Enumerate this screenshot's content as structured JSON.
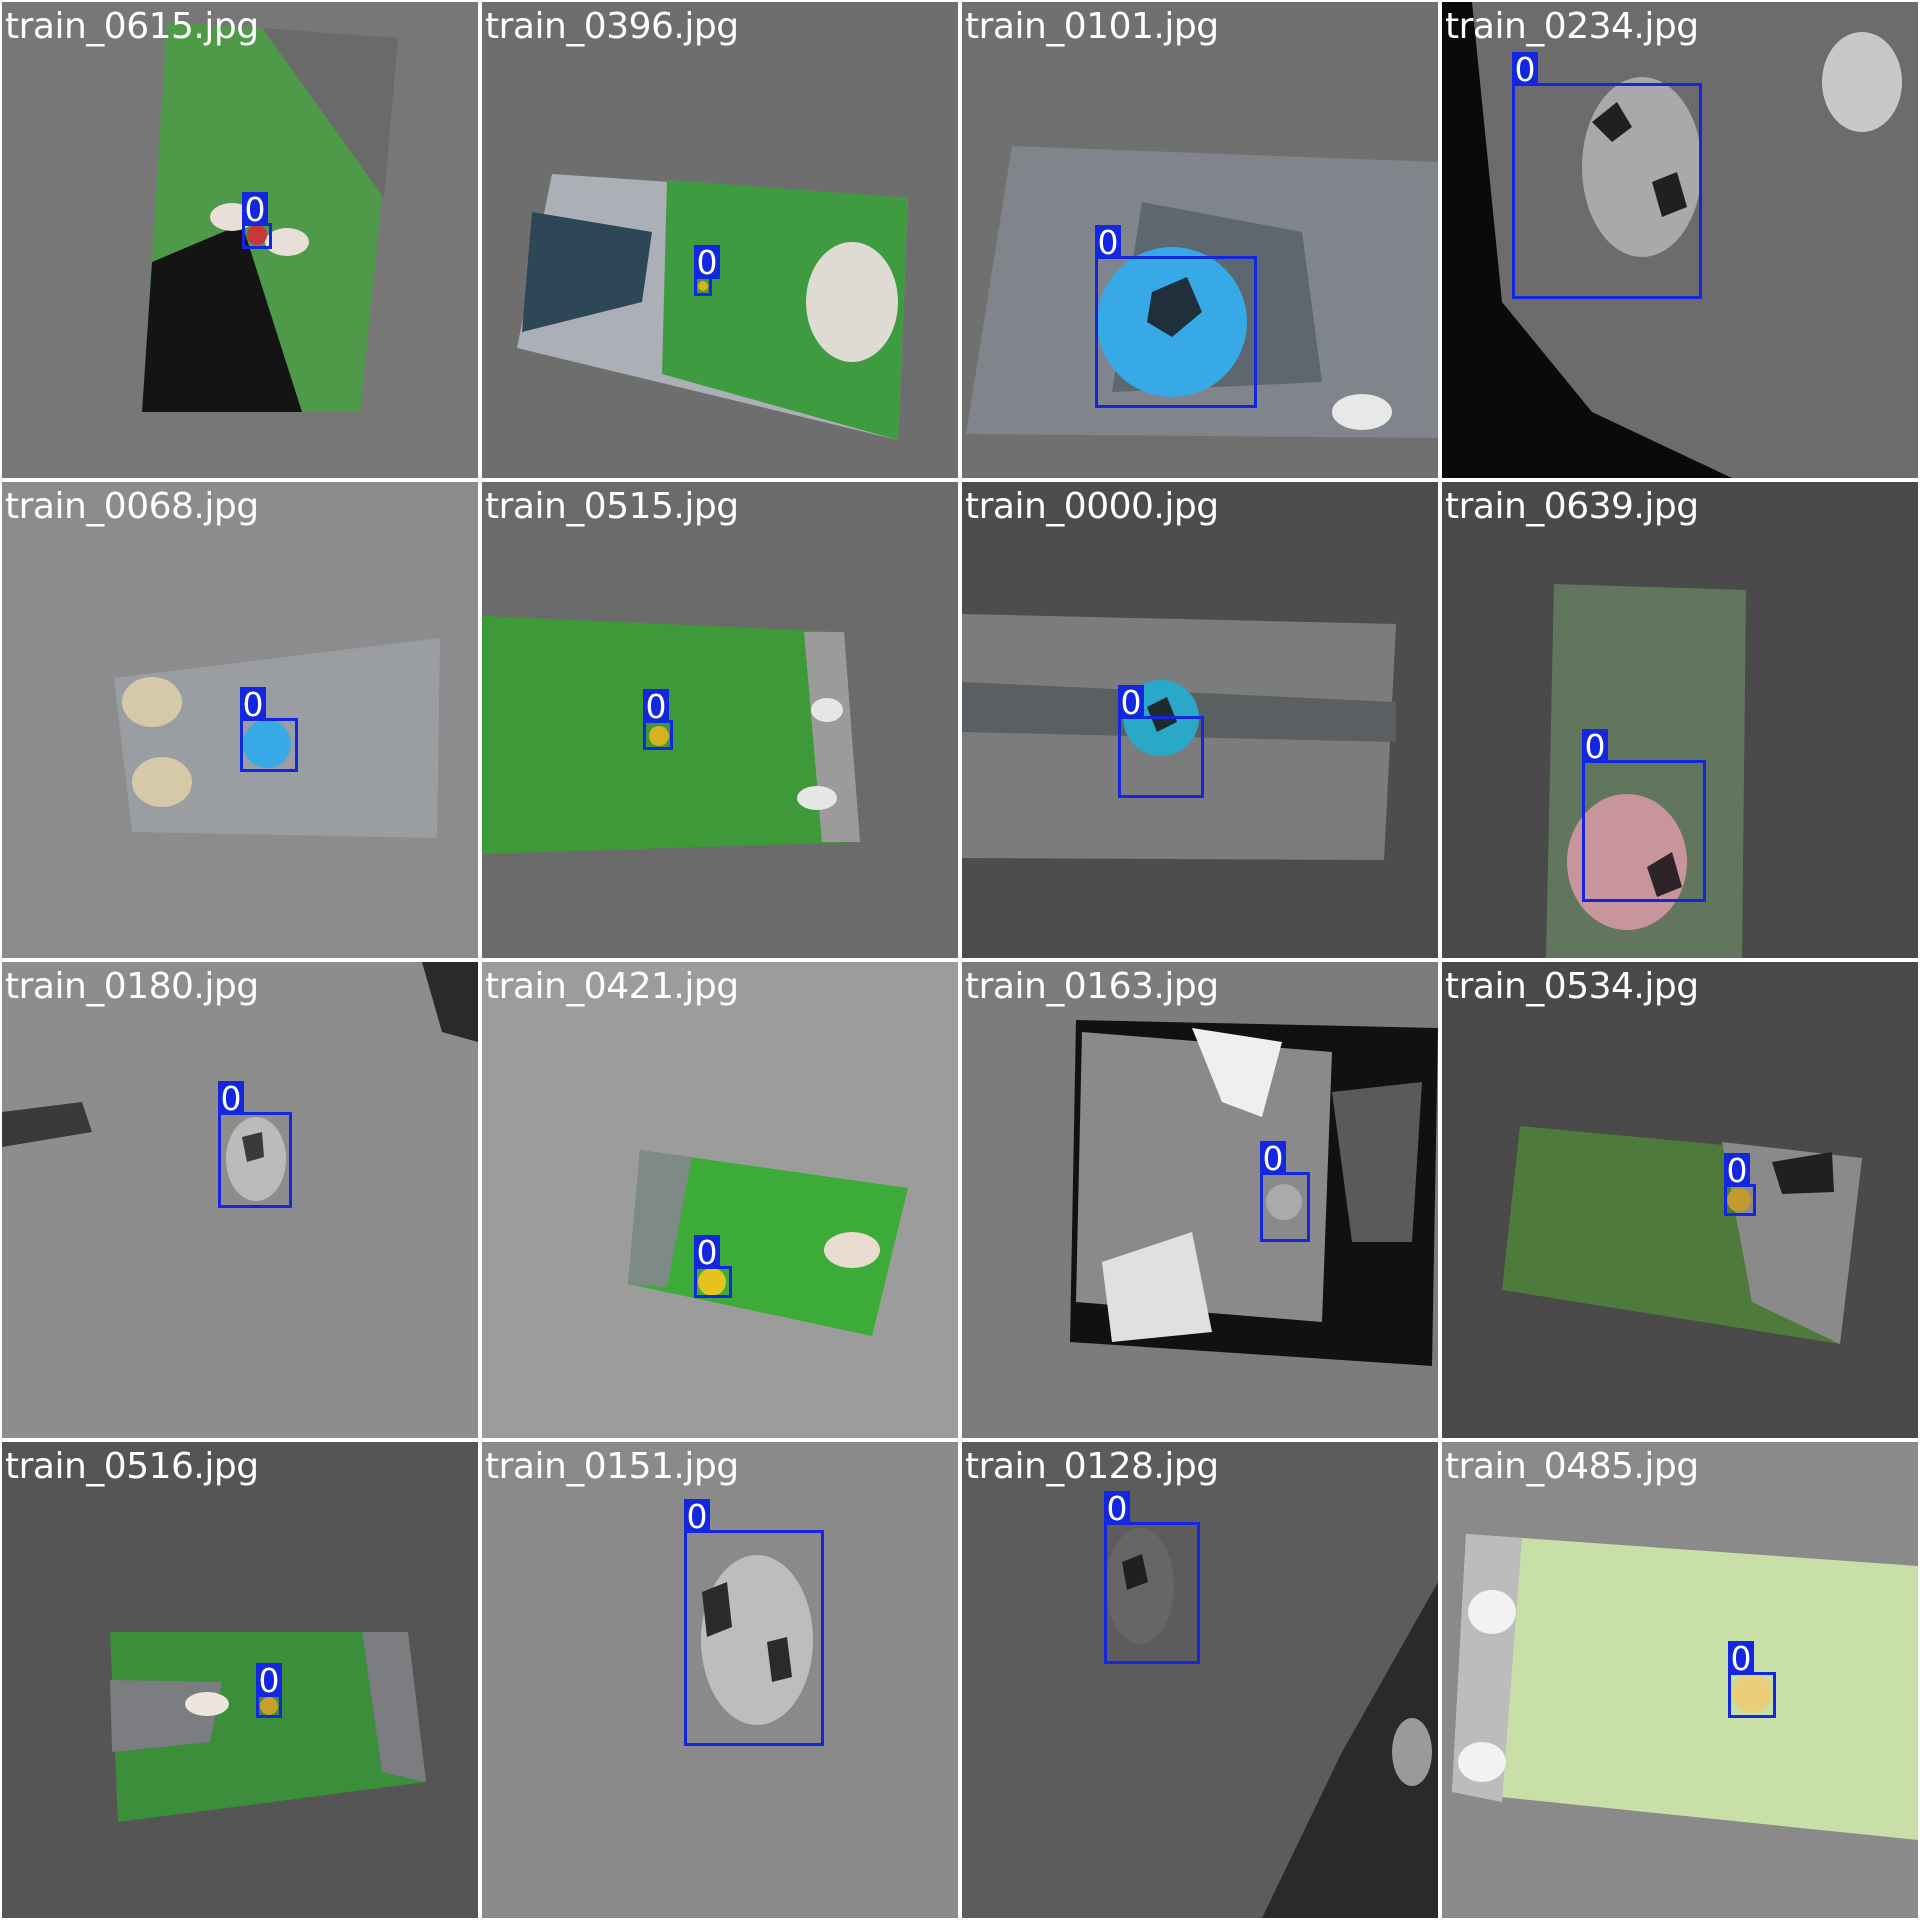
{
  "mosaic": {
    "label_color": "#1427e0",
    "tiles": [
      {
        "file": "train_0615.jpg",
        "label": "0",
        "surface": "green-turf",
        "ball_color": "#c8383a"
      },
      {
        "file": "train_0396.jpg",
        "label": "0",
        "surface": "green-turf",
        "ball_color": "#d8b020"
      },
      {
        "file": "train_0101.jpg",
        "label": "0",
        "surface": "grey-carpet",
        "ball_color": "#37a9e6"
      },
      {
        "file": "train_0234.jpg",
        "label": "0",
        "surface": "grey-carpet",
        "ball_color": "#9a9a9a"
      },
      {
        "file": "train_0068.jpg",
        "label": "0",
        "surface": "grey-carpet",
        "ball_color": "#37a9e6"
      },
      {
        "file": "train_0515.jpg",
        "label": "0",
        "surface": "green-turf",
        "ball_color": "#d8b020"
      },
      {
        "file": "train_0000.jpg",
        "label": "0",
        "surface": "grey-carpet",
        "ball_color": "#2aa8c8"
      },
      {
        "file": "train_0639.jpg",
        "label": "0",
        "surface": "green-turf",
        "ball_color": "#c9959c"
      },
      {
        "file": "train_0180.jpg",
        "label": "0",
        "surface": "grey-carpet",
        "ball_color": "#bbbbbb"
      },
      {
        "file": "train_0421.jpg",
        "label": "0",
        "surface": "green-turf",
        "ball_color": "#e5c21d"
      },
      {
        "file": "train_0163.jpg",
        "label": "0",
        "surface": "grey-carpet",
        "ball_color": "#aaaaaa"
      },
      {
        "file": "train_0534.jpg",
        "label": "0",
        "surface": "green-turf",
        "ball_color": "#c09a30"
      },
      {
        "file": "train_0516.jpg",
        "label": "0",
        "surface": "green-turf",
        "ball_color": "#c9a030"
      },
      {
        "file": "train_0151.jpg",
        "label": "0",
        "surface": "grey-carpet",
        "ball_color": "#bdbdbd"
      },
      {
        "file": "train_0128.jpg",
        "label": "0",
        "surface": "grey-carpet",
        "ball_color": "#666666"
      },
      {
        "file": "train_0485.jpg",
        "label": "0",
        "surface": "green-turf",
        "ball_color": "#e9cf7a"
      }
    ]
  }
}
